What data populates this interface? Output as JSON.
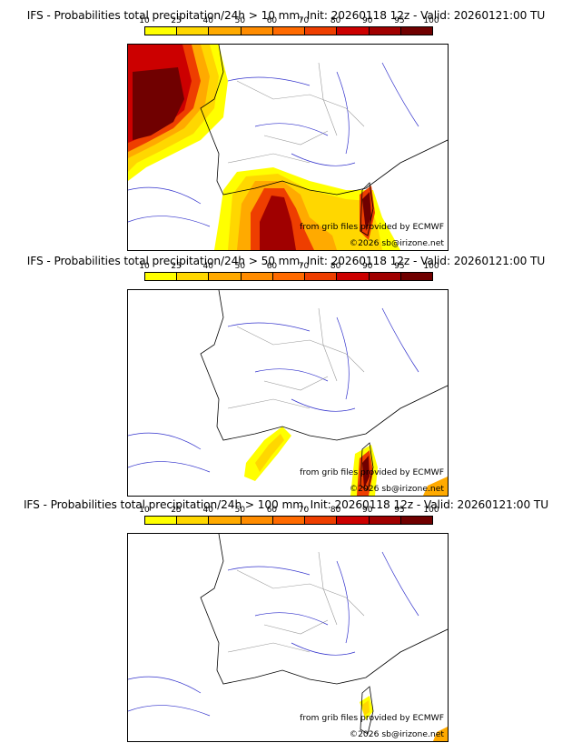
{
  "colorbar": {
    "ticks": [
      "10",
      "25",
      "40",
      "50",
      "60",
      "70",
      "80",
      "90",
      "95",
      "100"
    ],
    "colors": [
      "#ffff00",
      "#ffd700",
      "#ffaa00",
      "#ff8c00",
      "#ff6a00",
      "#ee3e00",
      "#cc0000",
      "#a00000",
      "#700000"
    ]
  },
  "panels": [
    {
      "title": "IFS - Probabilities total precipitation/24h > 10 mm, Init: 20260118 12z - Valid: 20260121:00 TU",
      "credit_source": "from grib files provided by ECMWF",
      "credit_copy": "©2026 sb@irizone.net"
    },
    {
      "title": "IFS - Probabilities total precipitation/24h > 50 mm, Init: 20260118 12z - Valid: 20260121:00 TU",
      "credit_source": "from grib files provided by ECMWF",
      "credit_copy": "©2026 sb@irizone.net"
    },
    {
      "title": "IFS - Probabilities total precipitation/24h > 100 mm, Init: 20260118 12z - Valid: 20260121:00 TU",
      "credit_source": "from grib files provided by ECMWF",
      "credit_copy": "©2026 sb@irizone.net"
    }
  ]
}
